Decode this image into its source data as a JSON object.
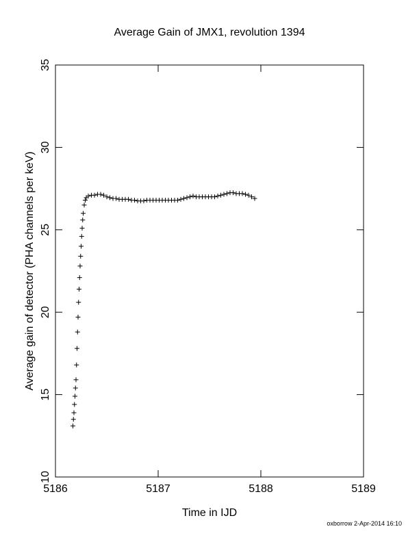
{
  "chart_data": {
    "type": "scatter",
    "title": "Average Gain of JMX1, revolution 1394",
    "xlabel": "Time in IJD",
    "ylabel": "Average gain of detector (PHA channels per keV)",
    "footer": "oxborrow  2-Apr-2014 16:10",
    "marker": "+",
    "color": "#000000",
    "xlim": [
      5186,
      5189
    ],
    "xticks": [
      5186,
      5187,
      5188,
      5189
    ],
    "ylim": [
      10,
      35
    ],
    "yticks": [
      10,
      15,
      20,
      25,
      30,
      35
    ],
    "x": [
      5186.17,
      5186.175,
      5186.18,
      5186.185,
      5186.19,
      5186.195,
      5186.2,
      5186.205,
      5186.21,
      5186.215,
      5186.22,
      5186.225,
      5186.23,
      5186.235,
      5186.24,
      5186.245,
      5186.25,
      5186.255,
      5186.26,
      5186.265,
      5186.27,
      5186.28,
      5186.29,
      5186.3,
      5186.32,
      5186.35,
      5186.38,
      5186.41,
      5186.44,
      5186.47,
      5186.5,
      5186.53,
      5186.56,
      5186.59,
      5186.62,
      5186.65,
      5186.68,
      5186.71,
      5186.74,
      5186.77,
      5186.8,
      5186.83,
      5186.86,
      5186.89,
      5186.92,
      5186.95,
      5186.98,
      5187.01,
      5187.04,
      5187.07,
      5187.1,
      5187.13,
      5187.16,
      5187.19,
      5187.22,
      5187.25,
      5187.28,
      5187.31,
      5187.34,
      5187.37,
      5187.4,
      5187.43,
      5187.46,
      5187.49,
      5187.52,
      5187.55,
      5187.58,
      5187.61,
      5187.64,
      5187.67,
      5187.7,
      5187.73,
      5187.76,
      5187.79,
      5187.82,
      5187.85,
      5187.88,
      5187.91,
      5187.94
    ],
    "values": [
      13.1,
      13.5,
      13.9,
      14.4,
      14.9,
      15.4,
      15.9,
      16.8,
      17.8,
      18.8,
      19.7,
      20.6,
      21.4,
      22.1,
      22.8,
      23.4,
      24.0,
      24.6,
      25.1,
      25.6,
      26.0,
      26.5,
      26.8,
      26.95,
      27.05,
      27.1,
      27.1,
      27.15,
      27.15,
      27.1,
      27.0,
      26.95,
      26.9,
      26.9,
      26.85,
      26.85,
      26.85,
      26.85,
      26.8,
      26.8,
      26.75,
      26.75,
      26.75,
      26.8,
      26.8,
      26.8,
      26.8,
      26.8,
      26.8,
      26.8,
      26.8,
      26.8,
      26.8,
      26.8,
      26.85,
      26.9,
      26.95,
      27.0,
      27.05,
      27.0,
      27.0,
      27.0,
      27.0,
      27.0,
      27.0,
      27.0,
      27.05,
      27.1,
      27.15,
      27.2,
      27.25,
      27.25,
      27.2,
      27.2,
      27.2,
      27.15,
      27.1,
      27.0,
      26.9
    ]
  }
}
